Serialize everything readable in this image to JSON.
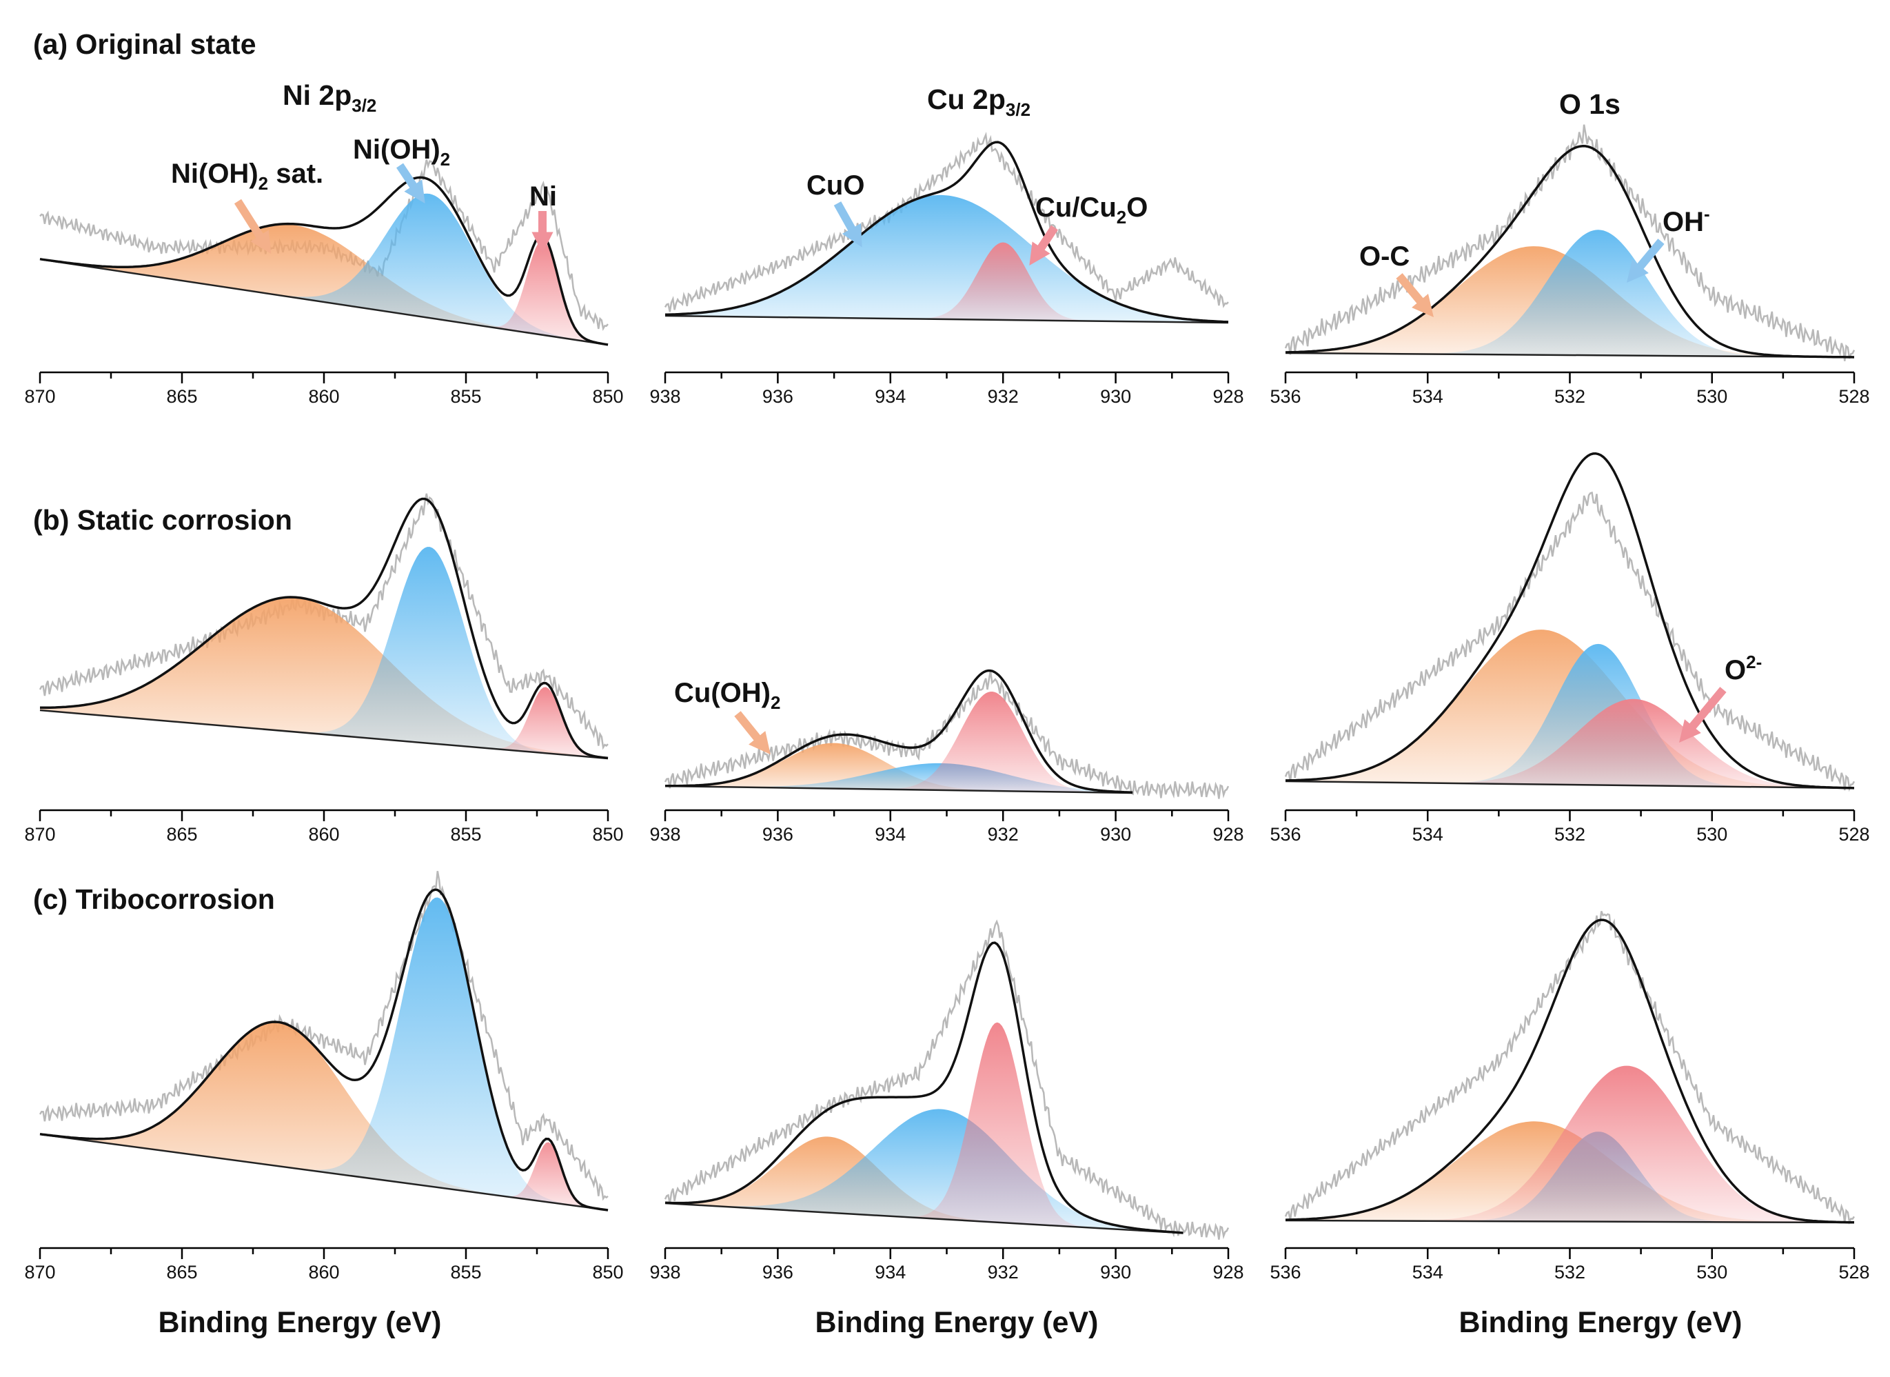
{
  "figure": {
    "rows": [
      {
        "id": "a",
        "title": "(a) Original state"
      },
      {
        "id": "b",
        "title": "(b) Static corrosion"
      },
      {
        "id": "c",
        "title": "(c) Tribocorrosion"
      }
    ],
    "columns": [
      {
        "id": "ni",
        "title_main": "Ni 2p",
        "title_sub": "3/2"
      },
      {
        "id": "cu",
        "title_main": "Cu 2p",
        "title_sub": "3/2"
      },
      {
        "id": "o",
        "title_main": "O 1s",
        "title_sub": ""
      }
    ],
    "xlabel": "Binding Energy (eV)"
  },
  "colors": {
    "orange": "#f4a46a",
    "blue": "#5ab7f0",
    "red": "#f08088",
    "envelope": "#111111",
    "raw": "#b8b8b8",
    "baseline": "#222222"
  },
  "chart_data": [
    {
      "panel": "a-ni",
      "type": "area",
      "xlim": [
        870,
        850
      ],
      "ticks": [
        870,
        865,
        860,
        855,
        850
      ],
      "xlabel": "",
      "raw": [
        [
          870,
          0.25
        ],
        [
          866,
          0.17
        ],
        [
          862,
          0.27
        ],
        [
          860,
          0.32
        ],
        [
          858,
          0.22
        ],
        [
          856.3,
          0.92
        ],
        [
          854,
          0.35
        ],
        [
          852.2,
          0.88
        ],
        [
          851,
          0.18
        ],
        [
          850,
          0.1
        ]
      ],
      "peaks": [
        {
          "name": "Ni(OH)2 sat.",
          "color": "orange",
          "center": 861,
          "amp": 0.42,
          "sigma": 2.6
        },
        {
          "name": "Ni(OH)2",
          "color": "blue",
          "center": 856.3,
          "amp": 0.72,
          "sigma": 1.55
        },
        {
          "name": "Ni",
          "color": "red",
          "center": 852.3,
          "amp": 0.55,
          "sigma": 0.55
        }
      ],
      "annotations": [
        {
          "text": "Ni(OH)",
          "sub": "2",
          "tail": " sat.",
          "color": "orange"
        },
        {
          "text": "Ni(OH)",
          "sub": "2",
          "tail": "",
          "color": "blue"
        },
        {
          "text": "Ni",
          "sub": "",
          "tail": "",
          "color": "red"
        }
      ]
    },
    {
      "panel": "a-cu",
      "type": "area",
      "xlim": [
        938,
        928
      ],
      "ticks": [
        938,
        936,
        934,
        932,
        930,
        928
      ],
      "xlabel": "",
      "raw": [
        [
          938,
          0.05
        ],
        [
          936,
          0.3
        ],
        [
          934,
          0.6
        ],
        [
          932.3,
          1.05
        ],
        [
          931,
          0.5
        ],
        [
          930,
          0.15
        ],
        [
          929,
          0.35
        ],
        [
          928,
          0.1
        ]
      ],
      "peaks": [
        {
          "name": "CuO",
          "color": "blue",
          "center": 933.1,
          "amp": 0.72,
          "sigma": 1.6
        },
        {
          "name": "Cu/Cu2O",
          "color": "red",
          "center": 932.0,
          "amp": 0.45,
          "sigma": 0.45
        }
      ],
      "annotations": [
        {
          "text": "CuO",
          "sub": "",
          "tail": "",
          "color": "blue"
        },
        {
          "text": "Cu/Cu",
          "sub": "2",
          "tail": "O",
          "color": "red"
        }
      ]
    },
    {
      "panel": "a-o",
      "type": "area",
      "xlim": [
        536,
        528
      ],
      "ticks": [
        536,
        534,
        532,
        530,
        528
      ],
      "xlabel": "",
      "raw": [
        [
          536,
          0.02
        ],
        [
          533,
          0.5
        ],
        [
          531.8,
          0.92
        ],
        [
          530,
          0.25
        ],
        [
          528,
          0.01
        ]
      ],
      "peaks": [
        {
          "name": "O-C",
          "color": "orange",
          "center": 532.5,
          "amp": 0.45,
          "sigma": 1.1
        },
        {
          "name": "OH-",
          "color": "blue",
          "center": 531.6,
          "amp": 0.52,
          "sigma": 0.7
        }
      ],
      "annotations": [
        {
          "text": "O-C",
          "sub": "",
          "tail": "",
          "color": "orange"
        },
        {
          "text": "OH",
          "sup": "-",
          "color": "blue"
        }
      ]
    },
    {
      "panel": "b-ni",
      "type": "area",
      "xlim": [
        870,
        850
      ],
      "ticks": [
        870,
        865,
        860,
        855,
        850
      ],
      "xlabel": "",
      "raw": [
        [
          870,
          0.1
        ],
        [
          865,
          0.35
        ],
        [
          861,
          0.62
        ],
        [
          858.5,
          0.55
        ],
        [
          856.3,
          1.2
        ],
        [
          853.5,
          0.3
        ],
        [
          852.2,
          0.38
        ],
        [
          850,
          0.05
        ]
      ],
      "peaks": [
        {
          "name": "sat",
          "color": "orange",
          "center": 861,
          "amp": 0.65,
          "sigma": 3.2
        },
        {
          "name": "Ni(OH)2",
          "color": "blue",
          "center": 856.3,
          "amp": 0.95,
          "sigma": 1.25
        },
        {
          "name": "Ni",
          "color": "red",
          "center": 852.2,
          "amp": 0.32,
          "sigma": 0.55
        }
      ]
    },
    {
      "panel": "b-cu",
      "type": "area",
      "xlim": [
        938,
        928
      ],
      "ticks": [
        938,
        936,
        934,
        932,
        930,
        928
      ],
      "xlabel": "",
      "fit_end": 929.7,
      "raw": [
        [
          938,
          0.02
        ],
        [
          935,
          0.25
        ],
        [
          933.5,
          0.18
        ],
        [
          932.2,
          0.55
        ],
        [
          931,
          0.15
        ],
        [
          929.7,
          0.02
        ],
        [
          928,
          0.02
        ]
      ],
      "peaks": [
        {
          "name": "Cu(OH)2",
          "color": "orange",
          "center": 935,
          "amp": 0.22,
          "sigma": 0.9
        },
        {
          "name": "CuO",
          "color": "blue",
          "center": 933.1,
          "amp": 0.13,
          "sigma": 1.2
        },
        {
          "name": "Cu/Cu2O",
          "color": "red",
          "center": 932.2,
          "amp": 0.48,
          "sigma": 0.55
        }
      ],
      "annotations": [
        {
          "text": "Cu(OH)",
          "sub": "2",
          "tail": "",
          "color": "orange"
        }
      ]
    },
    {
      "panel": "b-o",
      "type": "area",
      "xlim": [
        536,
        528
      ],
      "ticks": [
        536,
        534,
        532,
        530,
        528
      ],
      "xlabel": "",
      "raw": [
        [
          536,
          0.02
        ],
        [
          533,
          0.7
        ],
        [
          531.7,
          1.28
        ],
        [
          530,
          0.35
        ],
        [
          528,
          0.01
        ]
      ],
      "peaks": [
        {
          "name": "O-C",
          "color": "orange",
          "center": 532.4,
          "amp": 0.68,
          "sigma": 1.1
        },
        {
          "name": "OH-",
          "color": "blue",
          "center": 531.6,
          "amp": 0.62,
          "sigma": 0.6
        },
        {
          "name": "O2-",
          "color": "red",
          "center": 531.1,
          "amp": 0.38,
          "sigma": 0.8
        }
      ],
      "annotations": [
        {
          "text": "O",
          "sup": "2-",
          "color": "red"
        }
      ]
    },
    {
      "panel": "c-ni",
      "type": "area",
      "xlim": [
        870,
        850
      ],
      "ticks": [
        870,
        865,
        860,
        855,
        850
      ],
      "xlabel": "Binding Energy (eV)",
      "raw": [
        [
          870,
          0.1
        ],
        [
          866,
          0.22
        ],
        [
          861.5,
          0.72
        ],
        [
          858.5,
          0.6
        ],
        [
          856,
          1.55
        ],
        [
          853,
          0.3
        ],
        [
          852.2,
          0.42
        ],
        [
          850,
          0.05
        ]
      ],
      "peaks": [
        {
          "name": "sat",
          "color": "orange",
          "center": 861.6,
          "amp": 0.72,
          "sigma": 2.3
        },
        {
          "name": "Ni(OH)2",
          "color": "blue",
          "center": 856,
          "amp": 1.45,
          "sigma": 1.3
        },
        {
          "name": "Ni",
          "color": "red",
          "center": 852.1,
          "amp": 0.3,
          "sigma": 0.45
        }
      ]
    },
    {
      "panel": "c-cu",
      "type": "area",
      "xlim": [
        938,
        928
      ],
      "ticks": [
        938,
        936,
        934,
        932,
        930,
        928
      ],
      "xlabel": "Binding Energy (eV)",
      "fit_end": 928.8,
      "raw": [
        [
          938,
          0.02
        ],
        [
          935,
          0.55
        ],
        [
          933.5,
          0.72
        ],
        [
          932.1,
          1.5
        ],
        [
          931,
          0.35
        ],
        [
          929,
          0.02
        ],
        [
          928,
          0.02
        ]
      ],
      "peaks": [
        {
          "name": "Cu(OH)2",
          "color": "orange",
          "center": 935.1,
          "amp": 0.38,
          "sigma": 0.9
        },
        {
          "name": "CuO",
          "color": "blue",
          "center": 933.1,
          "amp": 0.55,
          "sigma": 1.2
        },
        {
          "name": "Cu/Cu2O",
          "color": "red",
          "center": 932.1,
          "amp": 1.0,
          "sigma": 0.45
        }
      ]
    },
    {
      "panel": "c-o",
      "type": "area",
      "xlim": [
        536,
        528
      ],
      "ticks": [
        536,
        534,
        532,
        530,
        528
      ],
      "xlabel": "Binding Energy (eV)",
      "raw": [
        [
          536,
          0.02
        ],
        [
          533,
          0.8
        ],
        [
          531.5,
          1.55
        ],
        [
          530,
          0.5
        ],
        [
          528,
          0.01
        ]
      ],
      "peaks": [
        {
          "name": "O-C",
          "color": "orange",
          "center": 532.5,
          "amp": 0.5,
          "sigma": 1.1
        },
        {
          "name": "OH-",
          "color": "blue",
          "center": 531.6,
          "amp": 0.45,
          "sigma": 0.55
        },
        {
          "name": "O2-",
          "color": "red",
          "center": 531.2,
          "amp": 0.78,
          "sigma": 0.85
        }
      ]
    }
  ]
}
